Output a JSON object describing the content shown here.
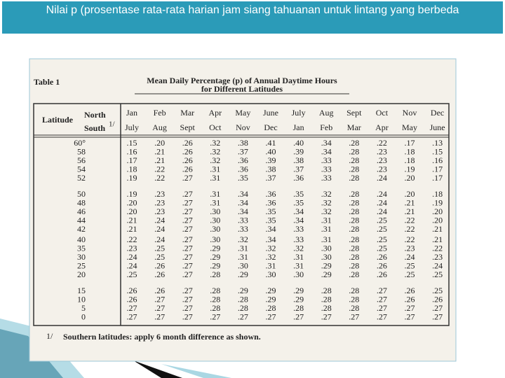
{
  "header": {
    "title": "Nilai p (prosentase rata-rata harian jam siang tahuanan untuk lintang yang berbeda"
  },
  "table": {
    "label": "Table 1",
    "title": [
      "Mean Daily Percentage (p) of Annual Daytime Hours",
      "for Different Latitudes"
    ],
    "latitude_header": "Latitude",
    "north_label": "North",
    "south_label": "South",
    "south_note": "1/",
    "north_months": [
      "Jan",
      "Feb",
      "Mar",
      "Apr",
      "May",
      "June",
      "July",
      "Aug",
      "Sept",
      "Oct",
      "Nov",
      "Dec"
    ],
    "south_months": [
      "July",
      "Aug",
      "Sept",
      "Oct",
      "Nov",
      "Dec",
      "Jan",
      "Feb",
      "Mar",
      "Apr",
      "May",
      "June"
    ],
    "rows": [
      {
        "latitude": "60°",
        "values": [
          ".15",
          ".20",
          ".26",
          ".32",
          ".38",
          ".41",
          ".40",
          ".34",
          ".28",
          ".22",
          ".17",
          ".13"
        ]
      },
      {
        "latitude": "58",
        "values": [
          ".16",
          ".21",
          ".26",
          ".32",
          ".37",
          ".40",
          ".39",
          ".34",
          ".28",
          ".23",
          ".18",
          ".15"
        ]
      },
      {
        "latitude": "56",
        "values": [
          ".17",
          ".21",
          ".26",
          ".32",
          ".36",
          ".39",
          ".38",
          ".33",
          ".28",
          ".23",
          ".18",
          ".16"
        ]
      },
      {
        "latitude": "54",
        "values": [
          ".18",
          ".22",
          ".26",
          ".31",
          ".36",
          ".38",
          ".37",
          ".33",
          ".28",
          ".23",
          ".19",
          ".17"
        ]
      },
      {
        "latitude": "52",
        "values": [
          ".19",
          ".22",
          ".27",
          ".31",
          ".35",
          ".37",
          ".36",
          ".33",
          ".28",
          ".24",
          ".20",
          ".17"
        ]
      },
      {
        "latitude": "50",
        "values": [
          ".19",
          ".23",
          ".27",
          ".31",
          ".34",
          ".36",
          ".35",
          ".32",
          ".28",
          ".24",
          ".20",
          ".18"
        ]
      },
      {
        "latitude": "48",
        "values": [
          ".20",
          ".23",
          ".27",
          ".31",
          ".34",
          ".36",
          ".35",
          ".32",
          ".28",
          ".24",
          ".21",
          ".19"
        ]
      },
      {
        "latitude": "46",
        "values": [
          ".20",
          ".23",
          ".27",
          ".30",
          ".34",
          ".35",
          ".34",
          ".32",
          ".28",
          ".24",
          ".21",
          ".20"
        ]
      },
      {
        "latitude": "44",
        "values": [
          ".21",
          ".24",
          ".27",
          ".30",
          ".33",
          ".35",
          ".34",
          ".31",
          ".28",
          ".25",
          ".22",
          ".20"
        ]
      },
      {
        "latitude": "42",
        "values": [
          ".21",
          ".24",
          ".27",
          ".30",
          ".33",
          ".34",
          ".33",
          ".31",
          ".28",
          ".25",
          ".22",
          ".21"
        ]
      },
      {
        "latitude": "40",
        "values": [
          ".22",
          ".24",
          ".27",
          ".30",
          ".32",
          ".34",
          ".33",
          ".31",
          ".28",
          ".25",
          ".22",
          ".21"
        ]
      },
      {
        "latitude": "35",
        "values": [
          ".23",
          ".25",
          ".27",
          ".29",
          ".31",
          ".32",
          ".32",
          ".30",
          ".28",
          ".25",
          ".23",
          ".22"
        ]
      },
      {
        "latitude": "30",
        "values": [
          ".24",
          ".25",
          ".27",
          ".29",
          ".31",
          ".32",
          ".31",
          ".30",
          ".28",
          ".26",
          ".24",
          ".23"
        ]
      },
      {
        "latitude": "25",
        "values": [
          ".24",
          ".26",
          ".27",
          ".29",
          ".30",
          ".31",
          ".31",
          ".29",
          ".28",
          ".26",
          ".25",
          ".24"
        ]
      },
      {
        "latitude": "20",
        "values": [
          ".25",
          ".26",
          ".27",
          ".28",
          ".29",
          ".30",
          ".30",
          ".29",
          ".28",
          ".26",
          ".25",
          ".25"
        ]
      },
      {
        "latitude": "15",
        "values": [
          ".26",
          ".26",
          ".27",
          ".28",
          ".29",
          ".29",
          ".29",
          ".28",
          ".28",
          ".27",
          ".26",
          ".25"
        ]
      },
      {
        "latitude": "10",
        "values": [
          ".26",
          ".27",
          ".27",
          ".28",
          ".28",
          ".29",
          ".29",
          ".28",
          ".28",
          ".27",
          ".26",
          ".26"
        ]
      },
      {
        "latitude": "5",
        "values": [
          ".27",
          ".27",
          ".27",
          ".28",
          ".28",
          ".28",
          ".28",
          ".28",
          ".28",
          ".27",
          ".27",
          ".27"
        ]
      },
      {
        "latitude": "0",
        "values": [
          ".27",
          ".27",
          ".27",
          ".27",
          ".27",
          ".27",
          ".27",
          ".27",
          ".27",
          ".27",
          ".27",
          ".27"
        ]
      }
    ],
    "footnote": {
      "mark": "1/",
      "text": "Southern latitudes: apply 6 month difference as shown."
    }
  }
}
